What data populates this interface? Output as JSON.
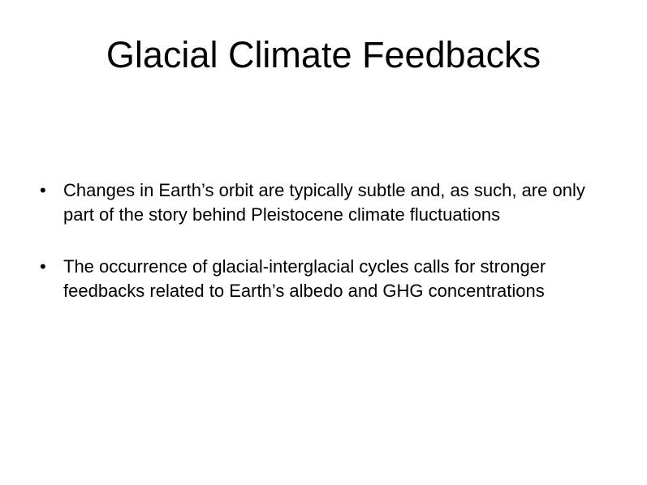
{
  "slide": {
    "title": "Glacial Climate Feedbacks",
    "bullet_marker": "•",
    "bullets": [
      "Changes in Earth’s orbit are typically subtle and, as such, are only part of the story behind Pleistocene climate fluctuations",
      "The occurrence of glacial-interglacial cycles calls for stronger feedbacks related to Earth’s albedo and GHG concentrations"
    ]
  }
}
